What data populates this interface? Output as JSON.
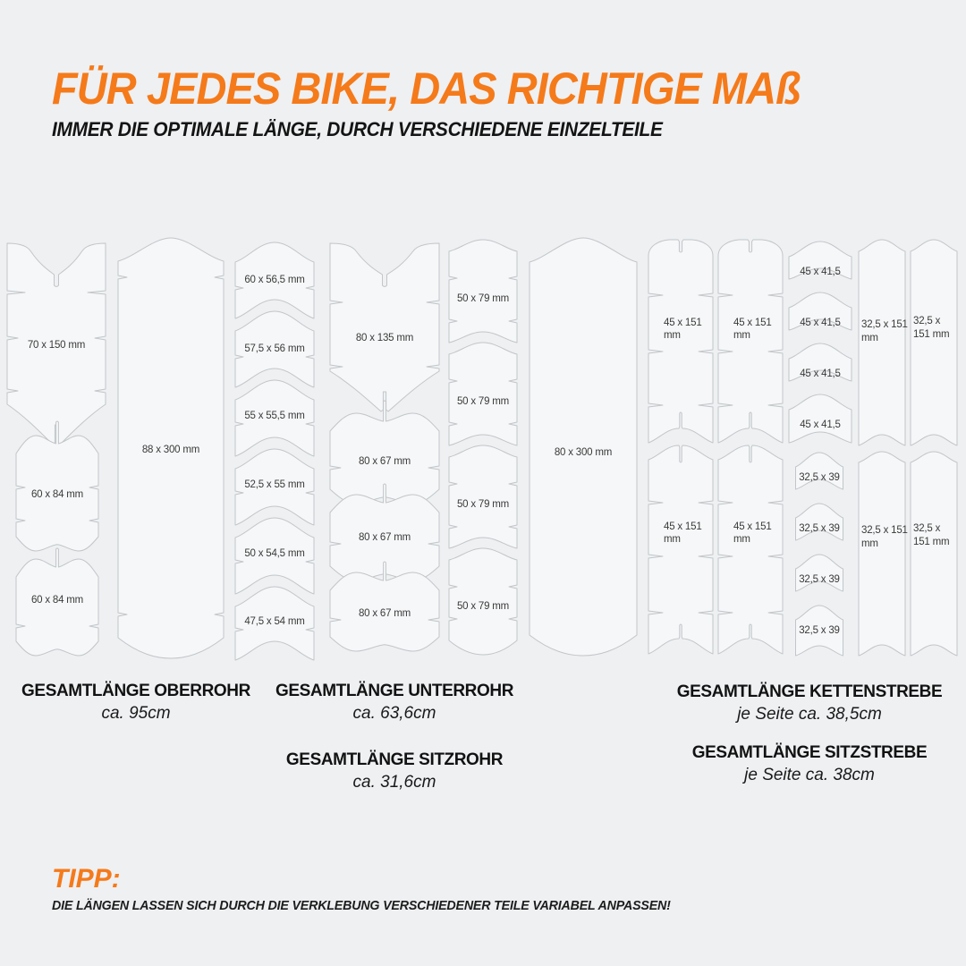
{
  "header": {
    "title": "FÜR JEDES BIKE, DAS RICHTIGE MAß",
    "subtitle": "IMMER DIE OPTIMALE LÄNGE, DURCH VERSCHIEDENE EINZELTEILE"
  },
  "colors": {
    "accent_orange": "#F57A1A",
    "background": "#EEF0F2",
    "piece_fill": "#F6F7F8",
    "piece_stroke": "#C2C6C9",
    "piece_label_text": "#3A3A3A",
    "dark_text": "#141414"
  },
  "diagram": {
    "columns": [
      {
        "name": "oberrohr-strips",
        "pieces": [
          {
            "label": "70 x 150 mm"
          },
          {
            "label": "60 x 84 mm"
          },
          {
            "label": "60 x 84 mm"
          }
        ]
      },
      {
        "name": "oberrohr-long-strip",
        "pieces": [
          {
            "label": "88 x 300 mm"
          }
        ]
      },
      {
        "name": "oberrohr-chevrons",
        "pieces": [
          {
            "label": "60 x 56,5 mm"
          },
          {
            "label": "57,5 x 56 mm"
          },
          {
            "label": "55 x 55,5 mm"
          },
          {
            "label": "52,5 x 55 mm"
          },
          {
            "label": "50 x 54,5 mm"
          },
          {
            "label": "47,5 x 54 mm"
          }
        ]
      },
      {
        "name": "unterrohr-strips",
        "pieces": [
          {
            "label": "80 x 135 mm"
          },
          {
            "label": "80 x 67 mm"
          },
          {
            "label": "80 x 67 mm"
          },
          {
            "label": "80 x 67 mm"
          }
        ]
      },
      {
        "name": "sitzrohr-strips",
        "pieces": [
          {
            "label": "50 x 79 mm"
          },
          {
            "label": "50 x 79 mm"
          },
          {
            "label": "50 x 79 mm"
          },
          {
            "label": "50 x 79 mm"
          }
        ]
      },
      {
        "name": "unterrohr-long-strip",
        "pieces": [
          {
            "label": "80 x 300 mm"
          }
        ]
      },
      {
        "name": "kettenstrebe-left",
        "pieces": [
          {
            "label": "45 x 151",
            "label2": "mm"
          },
          {
            "label": "45 x 151",
            "label2": "mm"
          }
        ]
      },
      {
        "name": "kettenstrebe-right",
        "pieces": [
          {
            "label": "45 x 151",
            "label2": "mm"
          },
          {
            "label": "45 x 151",
            "label2": "mm"
          }
        ]
      },
      {
        "name": "strebe-small-chevrons",
        "pieces": [
          {
            "label": "45 x 41,5"
          },
          {
            "label": "45 x 41,5"
          },
          {
            "label": "45 x 41,5"
          },
          {
            "label": "45 x 41,5"
          },
          {
            "label": "32,5 x 39"
          },
          {
            "label": "32,5 x 39"
          },
          {
            "label": "32,5 x 39"
          },
          {
            "label": "32,5 x 39"
          }
        ]
      },
      {
        "name": "sitzstrebe-left",
        "pieces": [
          {
            "label": "32,5 x 151",
            "label2": "mm"
          },
          {
            "label": "32,5 x 151",
            "label2": "mm"
          }
        ]
      },
      {
        "name": "sitzstrebe-right",
        "pieces": [
          {
            "label": "32,5 x",
            "label2": "151 mm"
          },
          {
            "label": "32,5 x",
            "label2": "151 mm"
          }
        ]
      }
    ]
  },
  "totals": [
    {
      "name": "GESAMTLÄNGE OBERROHR",
      "value": "ca. 95cm"
    },
    {
      "name": "GESAMTLÄNGE UNTERROHR",
      "value": "ca. 63,6cm"
    },
    {
      "name": "GESAMTLÄNGE SITZROHR",
      "value": "ca. 31,6cm"
    },
    {
      "name": "GESAMTLÄNGE KETTENSTREBE",
      "value": "je Seite ca. 38,5cm"
    },
    {
      "name": "GESAMTLÄNGE SITZSTREBE",
      "value": "je Seite ca. 38cm"
    }
  ],
  "tip": {
    "heading": "TIPP:",
    "text": "DIE LÄNGEN LASSEN SICH DURCH DIE VERKLEBUNG VERSCHIEDENER TEILE VARIABEL ANPASSEN!"
  }
}
